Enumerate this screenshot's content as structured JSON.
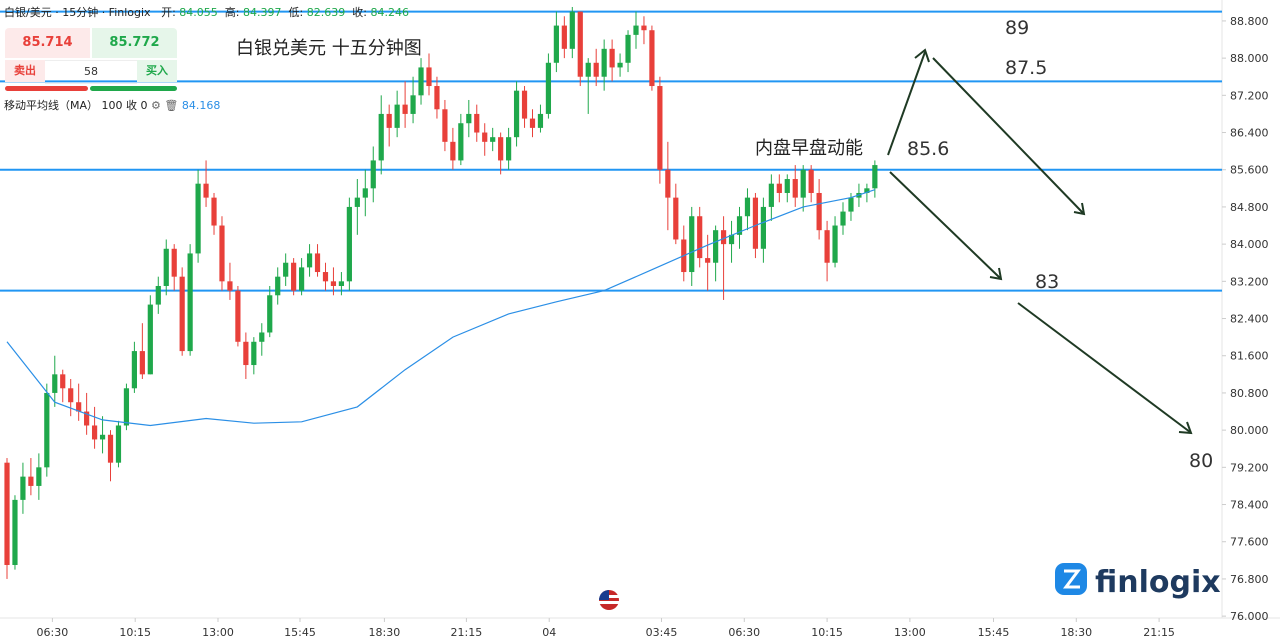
{
  "header": {
    "symbol": "白银/美元 · 15分钟 · Finlogix",
    "open_label": "开:",
    "open": 84.055,
    "high_label": "高:",
    "high": 84.397,
    "low_label": "低:",
    "low": 82.639,
    "close_label": "收:",
    "close": 84.246,
    "sell_price": 85.714,
    "buy_price": 85.772,
    "sell_label": "卖出",
    "buy_label": "买入",
    "spread": 58,
    "indicator": "移动平均线（MA）",
    "ma_period": 100,
    "ma_source": "收",
    "ma_offset": 0,
    "ma_value": 84.168,
    "logo": "finlogix"
  },
  "chart_data": {
    "type": "candlestick",
    "title": "白银兑美元 十五分钟图",
    "subtitle": "内盘早盘动能",
    "up_color": "#1fa84b",
    "down_color": "#e8403a",
    "open": [
      79.3,
      77.1,
      78.5,
      79.0,
      78.8,
      79.2,
      80.8,
      81.2,
      80.9,
      80.6,
      80.4,
      80.1,
      79.8,
      79.9,
      79.3,
      80.1,
      80.9,
      81.7,
      81.2,
      82.7,
      83.1,
      83.9,
      83.3,
      81.7,
      83.8,
      85.3,
      85.0,
      84.4,
      83.2,
      83.0,
      81.9,
      81.4,
      81.9,
      82.1,
      82.9,
      83.3,
      83.6,
      83.0,
      83.5,
      83.8,
      83.4,
      83.2,
      83.1,
      83.2,
      84.8,
      85.0,
      85.2,
      85.8,
      86.8,
      86.5,
      87.0,
      86.8,
      87.2,
      87.8,
      87.4,
      86.9,
      86.2,
      85.8,
      86.6,
      86.8,
      86.4,
      86.2,
      86.3,
      85.8,
      86.3,
      87.3,
      86.7,
      86.5,
      86.8,
      87.9,
      88.7,
      88.2,
      89.0,
      87.6,
      87.9,
      87.6,
      88.2,
      87.8,
      87.9,
      88.5,
      88.7,
      88.6,
      87.4,
      85.6,
      85.0,
      84.1,
      83.4,
      84.6,
      83.7,
      83.6,
      84.3,
      84.0,
      84.2,
      84.6,
      85.0,
      83.9,
      84.8,
      85.3,
      85.1,
      85.4,
      85.0,
      85.6,
      85.1,
      84.3,
      83.6,
      84.4,
      84.7,
      85.0,
      85.1,
      85.2
    ],
    "high": [
      79.4,
      78.6,
      79.3,
      79.4,
      79.5,
      81.0,
      81.6,
      81.3,
      81.1,
      81.0,
      80.8,
      80.5,
      80.3,
      80.0,
      80.2,
      81.0,
      81.9,
      82.3,
      82.9,
      83.3,
      84.1,
      84.0,
      83.5,
      84.0,
      85.6,
      85.8,
      85.1,
      84.6,
      83.6,
      83.1,
      82.1,
      82.0,
      82.3,
      83.1,
      83.5,
      83.8,
      83.7,
      83.7,
      84.0,
      84.0,
      83.6,
      83.5,
      83.4,
      85.0,
      85.4,
      85.6,
      86.1,
      87.2,
      87.0,
      87.3,
      87.5,
      87.6,
      88.0,
      88.1,
      87.6,
      87.1,
      86.5,
      86.8,
      87.1,
      87.0,
      86.6,
      86.5,
      86.4,
      86.5,
      87.5,
      87.4,
      86.9,
      87.0,
      88.1,
      89.0,
      88.9,
      89.1,
      89.0,
      88.0,
      88.2,
      88.4,
      88.4,
      88.1,
      88.6,
      89.0,
      88.9,
      88.7,
      87.6,
      86.2,
      85.3,
      84.4,
      84.8,
      84.8,
      84.2,
      84.4,
      84.6,
      84.5,
      84.8,
      85.2,
      85.1,
      85.0,
      85.5,
      85.5,
      85.5,
      85.7,
      85.7,
      85.7,
      85.4,
      84.5,
      84.6,
      84.9,
      85.1,
      85.3,
      85.3,
      85.8
    ],
    "low": [
      76.8,
      77.0,
      78.2,
      78.6,
      78.5,
      79.0,
      80.5,
      80.6,
      80.3,
      80.2,
      79.9,
      79.6,
      79.5,
      78.9,
      79.2,
      80.0,
      80.8,
      81.1,
      81.2,
      82.5,
      82.9,
      83.0,
      81.6,
      81.6,
      83.6,
      84.8,
      84.2,
      83.0,
      82.8,
      81.8,
      81.1,
      81.2,
      81.6,
      82.0,
      82.7,
      83.1,
      82.9,
      82.9,
      83.3,
      83.3,
      83.0,
      82.9,
      82.9,
      83.0,
      84.2,
      84.6,
      84.9,
      85.5,
      86.1,
      86.3,
      86.5,
      86.6,
      87.0,
      87.2,
      86.7,
      86.0,
      85.6,
      85.7,
      86.3,
      86.2,
      85.9,
      86.0,
      85.5,
      85.6,
      86.1,
      86.5,
      86.3,
      86.4,
      86.7,
      87.7,
      88.0,
      88.0,
      87.4,
      86.8,
      87.4,
      87.3,
      87.5,
      87.6,
      87.7,
      88.2,
      88.3,
      87.3,
      85.3,
      84.3,
      84.0,
      83.2,
      83.1,
      83.5,
      83.0,
      83.2,
      82.8,
      83.6,
      83.9,
      84.3,
      83.7,
      83.6,
      84.5,
      84.9,
      84.9,
      84.8,
      84.7,
      84.9,
      84.1,
      83.2,
      83.5,
      84.2,
      84.5,
      84.8,
      84.9,
      85.0
    ],
    "close": [
      77.1,
      78.5,
      79.0,
      78.8,
      79.2,
      80.8,
      81.2,
      80.9,
      80.6,
      80.4,
      80.1,
      79.8,
      79.9,
      79.3,
      80.1,
      80.9,
      81.7,
      81.2,
      82.7,
      83.1,
      83.9,
      83.3,
      81.7,
      83.8,
      85.3,
      85.0,
      84.4,
      83.2,
      83.0,
      81.9,
      81.4,
      81.9,
      82.1,
      82.9,
      83.3,
      83.6,
      83.0,
      83.5,
      83.8,
      83.4,
      83.2,
      83.1,
      83.2,
      84.8,
      85.0,
      85.2,
      85.8,
      86.8,
      86.5,
      87.0,
      86.8,
      87.2,
      87.8,
      87.4,
      86.9,
      86.2,
      85.8,
      86.6,
      86.8,
      86.4,
      86.2,
      86.3,
      85.8,
      86.3,
      87.3,
      86.7,
      86.5,
      86.8,
      87.9,
      88.7,
      88.2,
      89.0,
      87.6,
      87.9,
      87.6,
      88.2,
      87.8,
      87.9,
      88.5,
      88.7,
      88.6,
      87.4,
      85.6,
      85.0,
      84.1,
      83.4,
      84.6,
      83.7,
      83.6,
      84.3,
      84.0,
      84.2,
      84.6,
      85.0,
      83.9,
      84.8,
      85.3,
      85.1,
      85.4,
      85.0,
      85.6,
      85.1,
      84.3,
      83.6,
      84.4,
      84.7,
      85.0,
      85.1,
      85.2,
      85.7
    ],
    "ma": {
      "color": "#2b8fe6",
      "x": [
        0,
        6,
        12,
        18,
        25,
        31,
        37,
        44,
        50,
        56,
        63,
        69,
        75,
        81,
        88,
        94,
        100,
        106,
        109
      ],
      "values": [
        81.9,
        80.6,
        80.22,
        80.1,
        80.25,
        80.15,
        80.18,
        80.5,
        81.3,
        82.0,
        82.5,
        82.76,
        83.0,
        83.45,
        83.98,
        84.4,
        84.8,
        85.0,
        85.17
      ]
    },
    "hlines": [
      89,
      87.5,
      85.6,
      83
    ],
    "hline_color": "#2196f3",
    "level_labels": [
      89,
      87.5,
      85.6,
      83,
      80
    ],
    "xlim": [
      -0.88,
      152.6
    ],
    "ylim": [
      75.96,
      89.25
    ],
    "xticks": [
      {
        "value": 5.7,
        "label": "06:30"
      },
      {
        "value": 16.1,
        "label": "10:15"
      },
      {
        "value": 26.5,
        "label": "13:00"
      },
      {
        "value": 36.8,
        "label": "15:45"
      },
      {
        "value": 47.4,
        "label": "18:30"
      },
      {
        "value": 57.7,
        "label": "21:15"
      },
      {
        "value": 68.1,
        "label": "04"
      },
      {
        "value": 82.2,
        "label": "03:45"
      },
      {
        "value": 92.6,
        "label": "06:30"
      },
      {
        "value": 103,
        "label": "10:15"
      },
      {
        "value": 113.4,
        "label": "13:00"
      },
      {
        "value": 123.9,
        "label": "15:45"
      },
      {
        "value": 134.3,
        "label": "18:30"
      },
      {
        "value": 144.7,
        "label": "21:15"
      }
    ],
    "yticks": [
      {
        "value": 76,
        "label": "76.000"
      },
      {
        "value": 76.8,
        "label": "76.800"
      },
      {
        "value": 77.6,
        "label": "77.600"
      },
      {
        "value": 78.4,
        "label": "78.400"
      },
      {
        "value": 79.2,
        "label": "79.200"
      },
      {
        "value": 80,
        "label": "80.000"
      },
      {
        "value": 80.8,
        "label": "80.800"
      },
      {
        "value": 81.6,
        "label": "81.600"
      },
      {
        "value": 82.4,
        "label": "82.400"
      },
      {
        "value": 83.2,
        "label": "83.200"
      },
      {
        "value": 84,
        "label": "84.000"
      },
      {
        "value": 84.8,
        "label": "84.800"
      },
      {
        "value": 85.6,
        "label": "85.600"
      },
      {
        "value": 86.4,
        "label": "86.400"
      },
      {
        "value": 87.2,
        "label": "87.200"
      },
      {
        "value": 88,
        "label": "88.000"
      },
      {
        "value": 88.8,
        "label": "88.800"
      }
    ]
  }
}
